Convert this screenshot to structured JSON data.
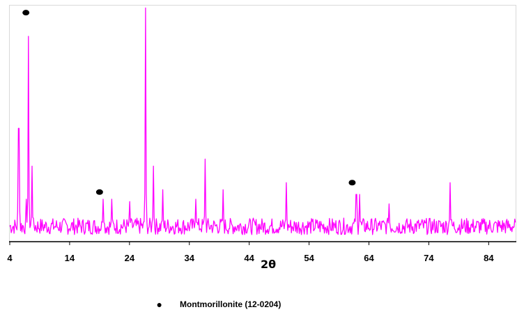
{
  "chart_data": {
    "type": "line",
    "title": "",
    "xlabel": "2θ",
    "ylabel": "",
    "xlim": [
      4,
      88.5
    ],
    "ylim": [
      0,
      100
    ],
    "x_ticks": [
      4,
      14,
      24,
      34,
      44,
      54,
      64,
      74,
      84
    ],
    "x_tick_labels": [
      "4",
      "14",
      "24",
      "34",
      "44",
      "54",
      "64",
      "74",
      "84"
    ],
    "grid": false,
    "legend_position": "bottom-center",
    "colors": {
      "line": "#ff00ff",
      "marker": "#000000",
      "axis": "#000000"
    },
    "baseline": {
      "mean": 6.5,
      "amplitude": 3.5
    },
    "series": [
      {
        "peaks": [
          {
            "x": 5.5,
            "y": 48
          },
          {
            "x": 6.8,
            "y": 18
          },
          {
            "x": 7.1,
            "y": 87
          },
          {
            "x": 7.7,
            "y": 32
          },
          {
            "x": 19.6,
            "y": 18
          },
          {
            "x": 21.0,
            "y": 18
          },
          {
            "x": 24.0,
            "y": 17
          },
          {
            "x": 26.7,
            "y": 99
          },
          {
            "x": 28.0,
            "y": 32
          },
          {
            "x": 29.6,
            "y": 22
          },
          {
            "x": 35.1,
            "y": 18
          },
          {
            "x": 36.6,
            "y": 35
          },
          {
            "x": 39.6,
            "y": 22
          },
          {
            "x": 50.2,
            "y": 25
          },
          {
            "x": 61.9,
            "y": 20
          },
          {
            "x": 62.4,
            "y": 20
          },
          {
            "x": 67.4,
            "y": 16
          },
          {
            "x": 77.6,
            "y": 25
          }
        ]
      }
    ],
    "markers": [
      {
        "x": 6.7,
        "y": 97
      },
      {
        "x": 19.0,
        "y": 21
      },
      {
        "x": 61.2,
        "y": 25
      }
    ],
    "legend": [
      {
        "symbol": "●",
        "label": "Montmorillonite (12-0204)"
      }
    ]
  }
}
